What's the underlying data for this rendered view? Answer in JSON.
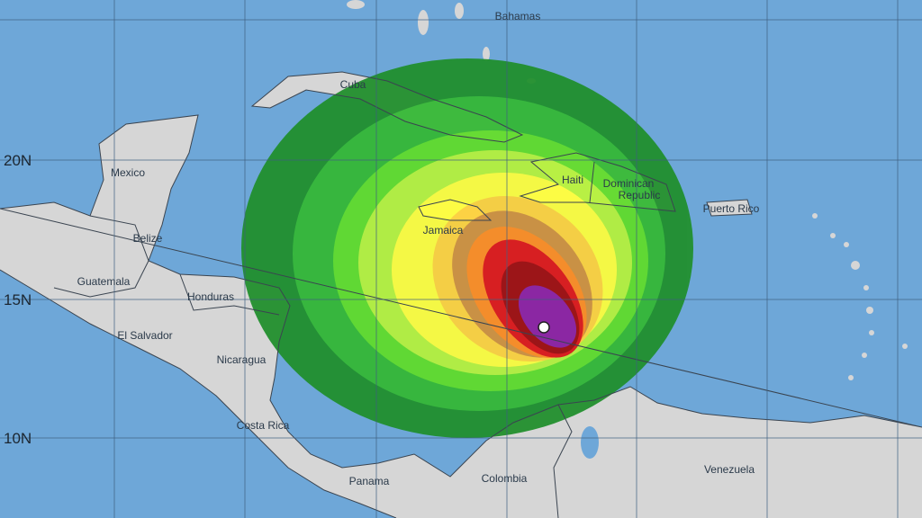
{
  "map": {
    "latitude_labels": [
      "20N",
      "15N",
      "10N"
    ],
    "place_labels": {
      "bahamas": "Bahamas",
      "cuba": "Cuba",
      "mexico": "Mexico",
      "belize": "Belize",
      "guatemala": "Guatemala",
      "honduras": "Honduras",
      "el_salvador": "El Salvador",
      "nicaragua": "Nicaragua",
      "costa_rica": "Costa Rica",
      "panama": "Panama",
      "colombia": "Colombia",
      "venezuela": "Venezuela",
      "jamaica": "Jamaica",
      "haiti": "Haiti",
      "dominican_republic_1": "Dominican",
      "dominican_republic_2": "Republic",
      "puerto_rico": "Puerto Rico"
    },
    "colors": {
      "ocean": "#6ea7d8",
      "land": "#d6d6d6",
      "swath": [
        "#1f8f2a",
        "#33b833",
        "#5fdc28",
        "#b6f23a",
        "#ffff3a",
        "#ffd23a",
        "#d0903a",
        "#ff8c1e",
        "#e01515",
        "#a00a0a",
        "#8e1ea0"
      ],
      "storm_center": "#ffffff"
    }
  }
}
